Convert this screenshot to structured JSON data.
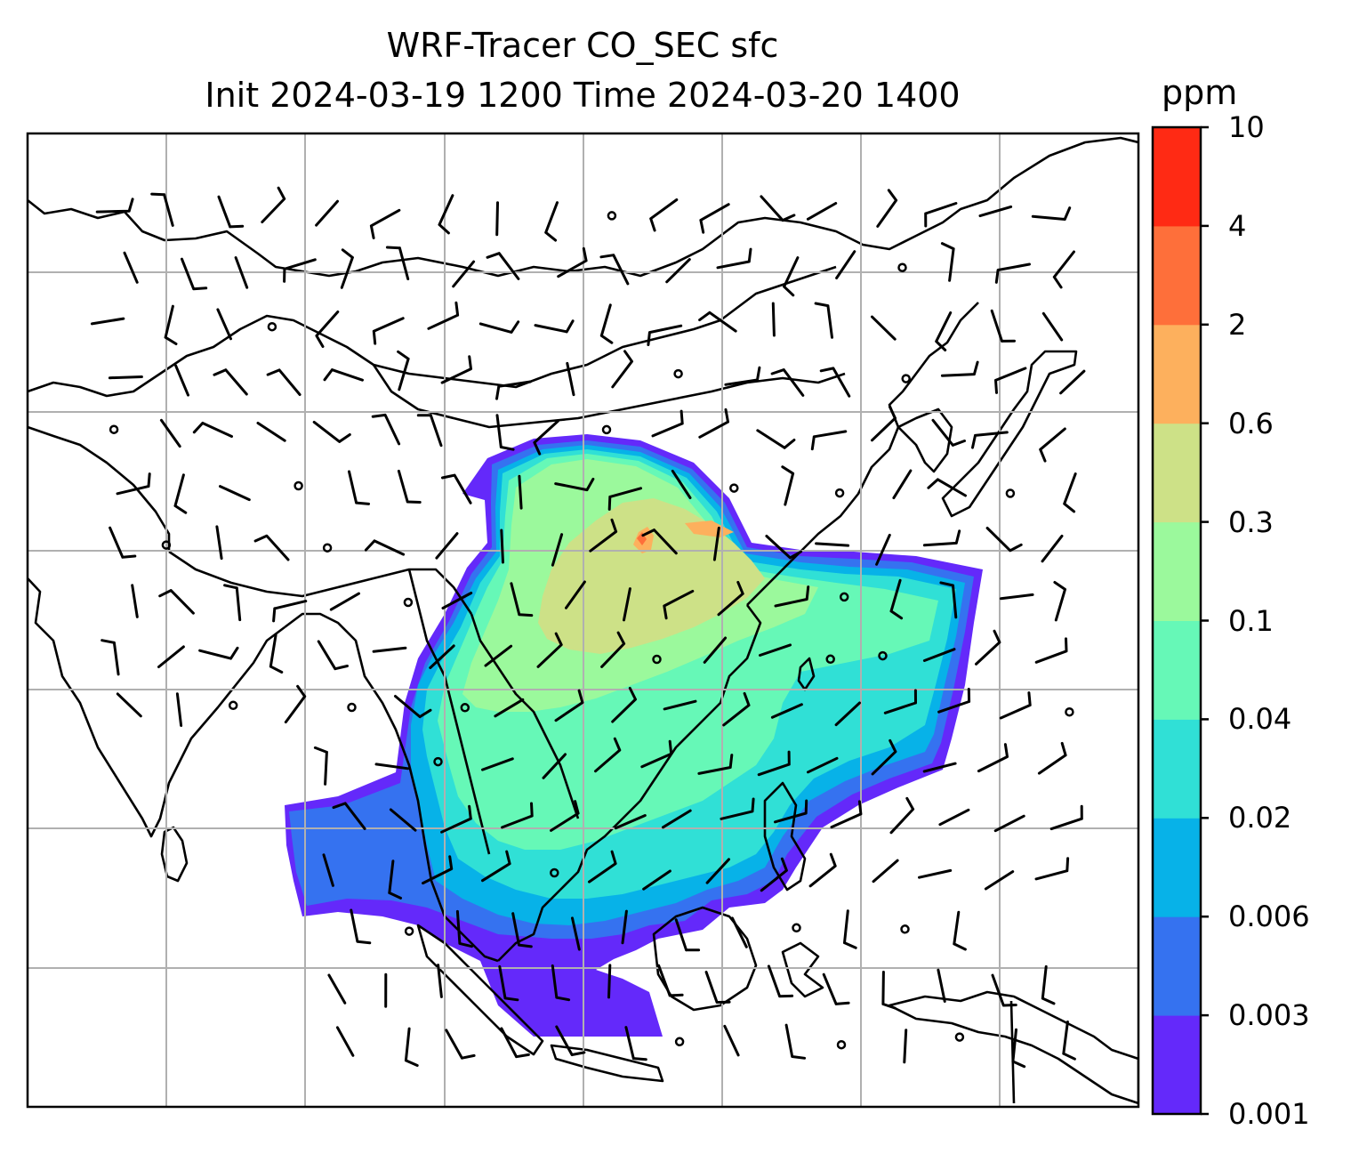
{
  "title": {
    "line1": "WRF-Tracer CO_SEC sfc",
    "line2": "Init 2024-03-19 1200 Time 2024-03-20 1400"
  },
  "colorbar": {
    "unit": "ppm",
    "ticks": [
      "0.001",
      "0.003",
      "0.006",
      "0.02",
      "0.04",
      "0.1",
      "0.3",
      "0.6",
      "2",
      "4",
      "10"
    ],
    "colors": [
      "#6429fa",
      "#3572f0",
      "#07b2e8",
      "#30e0d6",
      "#66f8b7",
      "#9bf99c",
      "#cde187",
      "#fdb05d",
      "#fe6f3a",
      "#ff2a14"
    ]
  },
  "map": {
    "basemap": "coastlines and country borders, Asia",
    "gridlines": true,
    "overlay": "wind barbs",
    "field": "CO_SEC surface tracer concentration"
  }
}
